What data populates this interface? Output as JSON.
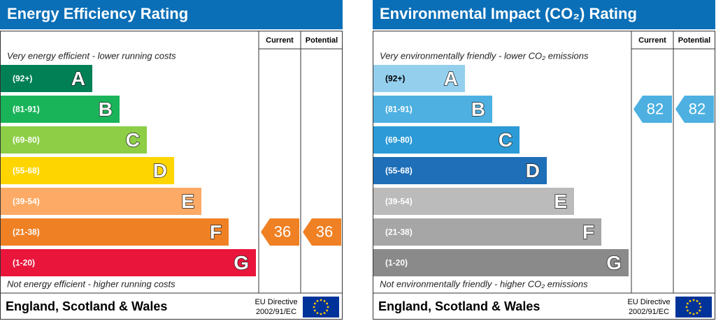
{
  "panels": [
    {
      "title": "Energy Efficiency Rating",
      "columns": [
        "Current",
        "Potential"
      ],
      "top_note": "Very energy efficient - lower running costs",
      "bottom_note": "Not energy efficient - higher running costs",
      "bands": [
        {
          "range": "(92+)",
          "letter": "A",
          "color": "#008054",
          "text_color": "#ffffff"
        },
        {
          "range": "(81-91)",
          "letter": "B",
          "color": "#19b459",
          "text_color": "#ffffff"
        },
        {
          "range": "(69-80)",
          "letter": "C",
          "color": "#8dce46",
          "text_color": "#ffffff"
        },
        {
          "range": "(55-68)",
          "letter": "D",
          "color": "#ffd500",
          "text_color": "#ffffff"
        },
        {
          "range": "(39-54)",
          "letter": "E",
          "color": "#fcaa65",
          "text_color": "#ffffff"
        },
        {
          "range": "(21-38)",
          "letter": "F",
          "color": "#ef8023",
          "text_color": "#ffffff"
        },
        {
          "range": "(1-20)",
          "letter": "G",
          "color": "#e9153b",
          "text_color": "#ffffff"
        }
      ],
      "current": 36,
      "potential": 36,
      "footer": "England, Scotland & Wales",
      "directive": [
        "EU Directive",
        "2002/91/EC"
      ]
    },
    {
      "title": "Environmental Impact (CO₂) Rating",
      "columns": [
        "Current",
        "Potential"
      ],
      "top_note": "Very environmentally friendly - lower CO₂ emissions",
      "bottom_note": "Not environmentally friendly - higher CO₂ emissions",
      "bands": [
        {
          "range": "(92+)",
          "letter": "A",
          "color": "#95cfee",
          "text_color": "#000000"
        },
        {
          "range": "(81-91)",
          "letter": "B",
          "color": "#4db0e1",
          "text_color": "#ffffff"
        },
        {
          "range": "(69-80)",
          "letter": "C",
          "color": "#2b9ad6",
          "text_color": "#ffffff"
        },
        {
          "range": "(55-68)",
          "letter": "D",
          "color": "#1e6fb8",
          "text_color": "#ffffff"
        },
        {
          "range": "(39-54)",
          "letter": "E",
          "color": "#bbbbbb",
          "text_color": "#ffffff"
        },
        {
          "range": "(21-38)",
          "letter": "F",
          "color": "#a6a6a6",
          "text_color": "#ffffff"
        },
        {
          "range": "(1-20)",
          "letter": "G",
          "color": "#8a8a8a",
          "text_color": "#ffffff"
        }
      ],
      "current": 82,
      "potential": 82,
      "footer": "England, Scotland & Wales",
      "directive": [
        "EU Directive",
        "2002/91/EC"
      ]
    }
  ]
}
